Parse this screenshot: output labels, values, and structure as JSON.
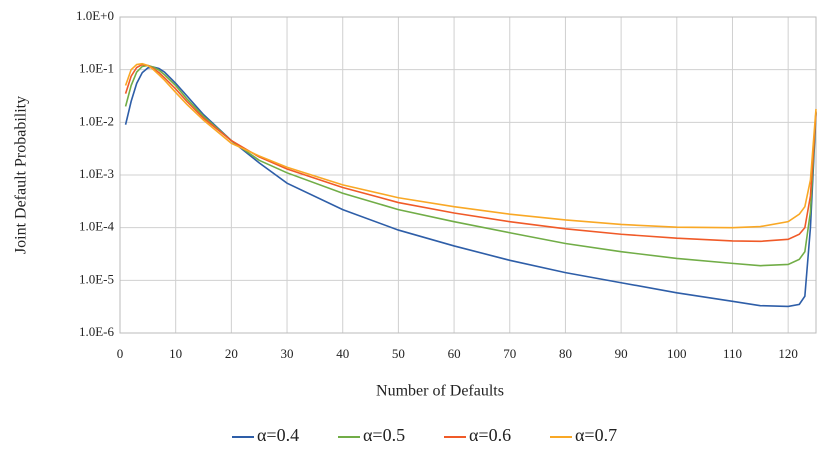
{
  "chart_data": {
    "type": "line",
    "x_label": "Number of Defaults",
    "y_label": "Joint Default Probability",
    "x": [
      1,
      2,
      3,
      4,
      5,
      6,
      7,
      8,
      10,
      12,
      15,
      20,
      25,
      30,
      40,
      50,
      60,
      70,
      80,
      90,
      100,
      110,
      115,
      120,
      122,
      123,
      124,
      125
    ],
    "series": [
      {
        "name": "α=0.4",
        "color": "#2e5ea8",
        "values": [
          0.009,
          0.025,
          0.055,
          0.088,
          0.108,
          0.112,
          0.105,
          0.09,
          0.055,
          0.032,
          0.014,
          0.0045,
          0.0017,
          0.0007,
          0.00022,
          9e-05,
          4.5e-05,
          2.4e-05,
          1.4e-05,
          9e-06,
          5.8e-06,
          4e-06,
          3.3e-06,
          3.2e-06,
          3.5e-06,
          5e-06,
          0.0001,
          0.015
        ]
      },
      {
        "name": "α=0.5",
        "color": "#71ad47",
        "values": [
          0.02,
          0.05,
          0.09,
          0.115,
          0.12,
          0.112,
          0.098,
          0.08,
          0.05,
          0.028,
          0.013,
          0.0045,
          0.0019,
          0.0011,
          0.00045,
          0.00022,
          0.00013,
          8e-05,
          5e-05,
          3.5e-05,
          2.6e-05,
          2.1e-05,
          1.9e-05,
          2e-05,
          2.5e-05,
          3.5e-05,
          0.0002,
          0.016
        ]
      },
      {
        "name": "α=0.6",
        "color": "#f05a28",
        "values": [
          0.035,
          0.075,
          0.11,
          0.125,
          0.12,
          0.105,
          0.088,
          0.07,
          0.043,
          0.025,
          0.012,
          0.0045,
          0.0022,
          0.0013,
          0.00058,
          0.0003,
          0.00019,
          0.00013,
          9.5e-05,
          7.5e-05,
          6.3e-05,
          5.6e-05,
          5.5e-05,
          6e-05,
          7.5e-05,
          0.0001,
          0.0004,
          0.016
        ]
      },
      {
        "name": "α=0.7",
        "color": "#f9a825",
        "values": [
          0.05,
          0.1,
          0.125,
          0.13,
          0.12,
          0.1,
          0.08,
          0.063,
          0.037,
          0.022,
          0.011,
          0.004,
          0.0023,
          0.0014,
          0.00065,
          0.00037,
          0.00025,
          0.00018,
          0.00014,
          0.000115,
          0.000102,
          0.0001,
          0.000105,
          0.00013,
          0.00018,
          0.00025,
          0.0008,
          0.018
        ]
      }
    ],
    "xlim": [
      0,
      125
    ],
    "xticks": [
      0,
      10,
      20,
      30,
      40,
      50,
      60,
      70,
      80,
      90,
      100,
      110,
      120
    ],
    "ylim": [
      1e-06,
      1
    ],
    "y_scale": "log",
    "yticks": [
      {
        "value": 1,
        "label": "1.0E+0"
      },
      {
        "value": 0.1,
        "label": "1.0E-1"
      },
      {
        "value": 0.01,
        "label": "1.0E-2"
      },
      {
        "value": 0.001,
        "label": "1.0E-3"
      },
      {
        "value": 0.0001,
        "label": "1.0E-4"
      },
      {
        "value": 1e-05,
        "label": "1.0E-5"
      },
      {
        "value": 1e-06,
        "label": "1.0E-6"
      }
    ],
    "grid": true,
    "legend": "bottom"
  }
}
